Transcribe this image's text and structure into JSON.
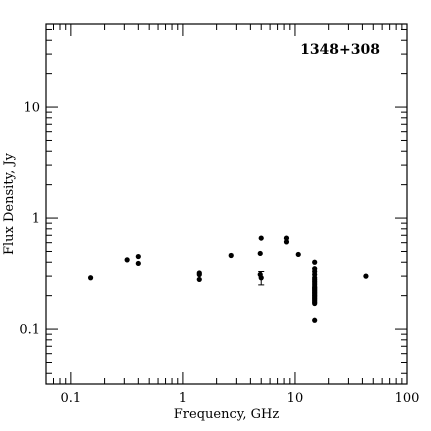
{
  "chart_data": {
    "type": "scatter",
    "title": "1348+308",
    "xlabel": "Frequency, GHz",
    "ylabel": "Flux Density, Jy",
    "xscale": "log",
    "yscale": "log",
    "xlim": [
      0.06,
      100
    ],
    "ylim": [
      0.032,
      56
    ],
    "grid": false,
    "x_tick_labels": [
      "0.1",
      "1",
      "10",
      "100"
    ],
    "y_tick_labels": [
      "0.1",
      "1",
      "10"
    ],
    "x_major_ticks": [
      0.1,
      1,
      10,
      100
    ],
    "y_major_ticks": [
      0.1,
      1,
      10
    ],
    "points": [
      {
        "x": 0.15,
        "y": 0.29
      },
      {
        "x": 0.318,
        "y": 0.42
      },
      {
        "x": 0.4,
        "y": 0.45
      },
      {
        "x": 0.4,
        "y": 0.39
      },
      {
        "x": 1.4,
        "y": 0.32
      },
      {
        "x": 1.4,
        "y": 0.31
      },
      {
        "x": 1.4,
        "y": 0.28
      },
      {
        "x": 2.7,
        "y": 0.46
      },
      {
        "x": 5.0,
        "y": 0.66
      },
      {
        "x": 4.9,
        "y": 0.48
      },
      {
        "x": 4.9,
        "y": 0.31
      },
      {
        "x": 5.0,
        "y": 0.29,
        "yerr_low": 0.25,
        "yerr_high": 0.33
      },
      {
        "x": 8.4,
        "y": 0.66
      },
      {
        "x": 8.4,
        "y": 0.61
      },
      {
        "x": 10.7,
        "y": 0.47
      },
      {
        "x": 15.0,
        "y": 0.4
      },
      {
        "x": 15.0,
        "y": 0.35
      },
      {
        "x": 15.0,
        "y": 0.33
      },
      {
        "x": 15.0,
        "y": 0.31
      },
      {
        "x": 15.0,
        "y": 0.29
      },
      {
        "x": 15.0,
        "y": 0.28
      },
      {
        "x": 15.0,
        "y": 0.27
      },
      {
        "x": 15.0,
        "y": 0.26
      },
      {
        "x": 15.0,
        "y": 0.25
      },
      {
        "x": 15.0,
        "y": 0.24
      },
      {
        "x": 15.0,
        "y": 0.235
      },
      {
        "x": 15.0,
        "y": 0.23
      },
      {
        "x": 15.0,
        "y": 0.225
      },
      {
        "x": 15.0,
        "y": 0.22
      },
      {
        "x": 15.0,
        "y": 0.215
      },
      {
        "x": 15.0,
        "y": 0.21
      },
      {
        "x": 15.0,
        "y": 0.205
      },
      {
        "x": 15.0,
        "y": 0.2
      },
      {
        "x": 15.0,
        "y": 0.195
      },
      {
        "x": 15.0,
        "y": 0.19
      },
      {
        "x": 15.0,
        "y": 0.185
      },
      {
        "x": 15.0,
        "y": 0.18
      },
      {
        "x": 15.0,
        "y": 0.175
      },
      {
        "x": 15.0,
        "y": 0.17
      },
      {
        "x": 15.0,
        "y": 0.12
      },
      {
        "x": 43.0,
        "y": 0.3
      }
    ]
  }
}
